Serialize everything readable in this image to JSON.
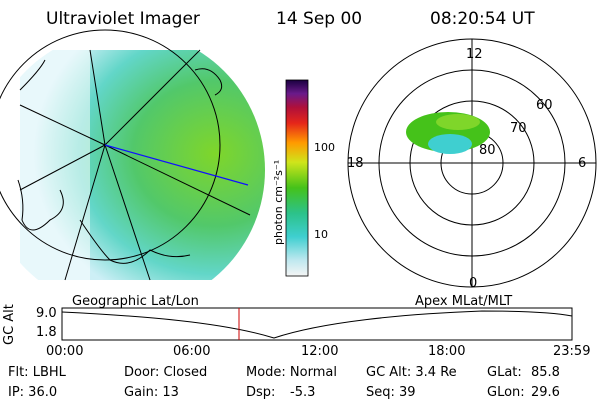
{
  "header": {
    "instrument": "Ultraviolet Imager",
    "date": "14 Sep 00",
    "time": "08:20:54 UT"
  },
  "colorbar": {
    "unit": "photon cm⁻²s⁻¹",
    "ticks": [
      "100",
      "10"
    ]
  },
  "polar_plot": {
    "hour_labels": [
      "12",
      "18",
      "6",
      "0"
    ],
    "lat_labels": [
      "60",
      "70",
      "80"
    ]
  },
  "geo_panel_label": "Geographic Lat/Lon",
  "apex_panel_label": "Apex MLat/MLT",
  "altitude_plot": {
    "ylabel": "GC Alt",
    "yticks": [
      "9.0",
      "1.8"
    ],
    "xticks": [
      "00:00",
      "06:00",
      "12:00",
      "18:00",
      "23:59"
    ],
    "marker_time": "08:20:54"
  },
  "status": {
    "filter": "Flt: LBHL",
    "ip": "IP: 36.0",
    "door": "Door: Closed",
    "gain": "Gain: 13",
    "mode": "Mode: Normal",
    "dsp": "Dsp:",
    "dsp_value": "-5.3",
    "gc_alt": "GC Alt: 3.4 Re",
    "seq": "Seq: 39",
    "glat": "GLat:",
    "glat_value": "85.8",
    "glon": "GLon:",
    "glon_value": "29.6"
  },
  "colors": {
    "arc": "#2fbf1a",
    "blue_line": "#1010ff",
    "marker": "#cc0000"
  }
}
